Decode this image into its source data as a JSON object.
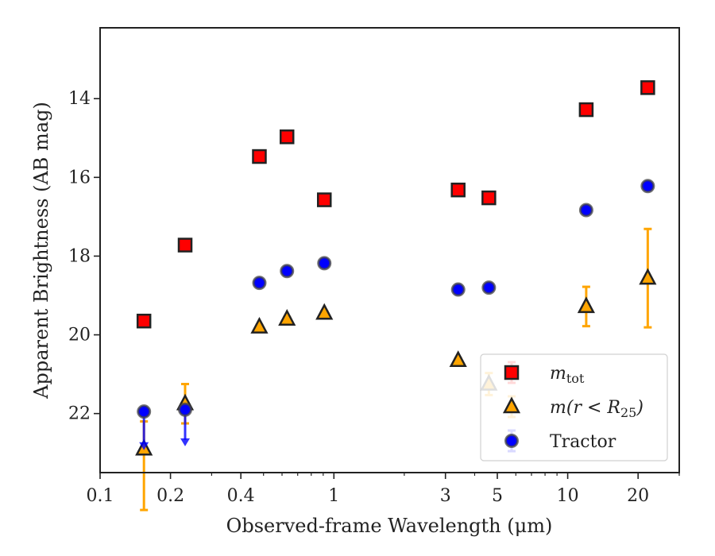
{
  "chart_data": {
    "type": "scatter",
    "xlabel": "Observed-frame Wavelength (μm)",
    "ylabel": "Apparent Brightness (AB mag)",
    "x_scale": "log",
    "xlim": [
      0.1,
      30
    ],
    "ylim": [
      23.5,
      12.2
    ],
    "y_inverted": true,
    "grid": false,
    "legend_position": "lower-right",
    "x_ticks": [
      "0.1",
      "0.2",
      "0.4",
      "1",
      "3",
      "5",
      "10",
      "20"
    ],
    "x_tick_values": [
      0.1,
      0.2,
      0.4,
      1,
      3,
      5,
      10,
      20
    ],
    "y_ticks": [
      "14",
      "16",
      "18",
      "20",
      "22"
    ],
    "y_tick_values": [
      14,
      16,
      18,
      20,
      22
    ],
    "series": [
      {
        "name": "m_tot",
        "legend_main": "m",
        "legend_sub": "tot",
        "marker": "square",
        "color": "#ff0000",
        "points": [
          {
            "x": 0.154,
            "y": 19.65,
            "err": 0.05
          },
          {
            "x": 0.231,
            "y": 17.72,
            "err": 0.03
          },
          {
            "x": 0.48,
            "y": 15.47,
            "err": 0.02
          },
          {
            "x": 0.63,
            "y": 14.97,
            "err": 0.02
          },
          {
            "x": 0.91,
            "y": 16.57,
            "err": 0.02
          },
          {
            "x": 3.4,
            "y": 16.32,
            "err": 0.02
          },
          {
            "x": 4.6,
            "y": 16.52,
            "err": 0.02
          },
          {
            "x": 12.0,
            "y": 14.28,
            "err": 0.03
          },
          {
            "x": 22.0,
            "y": 13.72,
            "err": 0.03
          }
        ]
      },
      {
        "name": "m(r < R_25)",
        "legend_main": "m(r < R",
        "legend_sub": "25",
        "legend_tail": ")",
        "marker": "triangle",
        "color": "#ffa500",
        "points": [
          {
            "x": 0.154,
            "y": 22.9,
            "err_low": 1.55,
            "err_high": 0.7
          },
          {
            "x": 0.231,
            "y": 21.75,
            "err_low": 0.5,
            "err_high": 0.5
          },
          {
            "x": 0.48,
            "y": 19.8,
            "err": 0.05
          },
          {
            "x": 0.63,
            "y": 19.6,
            "err": 0.05
          },
          {
            "x": 0.91,
            "y": 19.45,
            "err": 0.05
          },
          {
            "x": 3.4,
            "y": 20.65,
            "err": 0.05
          },
          {
            "x": 4.6,
            "y": 21.25,
            "err": 0.28
          },
          {
            "x": 12.0,
            "y": 19.28,
            "err": 0.5
          },
          {
            "x": 22.0,
            "y": 18.56,
            "err": 1.25
          }
        ]
      },
      {
        "name": "Tractor",
        "marker": "circle",
        "color": "#0000ff",
        "points": [
          {
            "x": 0.154,
            "y": 21.95,
            "upper_limit": true,
            "limit_to": 22.85
          },
          {
            "x": 0.231,
            "y": 21.9,
            "upper_limit": true,
            "limit_to": 22.75
          },
          {
            "x": 0.48,
            "y": 18.68,
            "err": 0.05
          },
          {
            "x": 0.63,
            "y": 18.38,
            "err": 0.05
          },
          {
            "x": 0.91,
            "y": 18.18,
            "err": 0.05
          },
          {
            "x": 3.4,
            "y": 18.85,
            "err": 0.05
          },
          {
            "x": 4.6,
            "y": 18.8,
            "err": 0.05
          },
          {
            "x": 12.0,
            "y": 16.83,
            "err": 0.05
          },
          {
            "x": 22.0,
            "y": 16.22,
            "err": 0.05
          }
        ]
      }
    ]
  }
}
